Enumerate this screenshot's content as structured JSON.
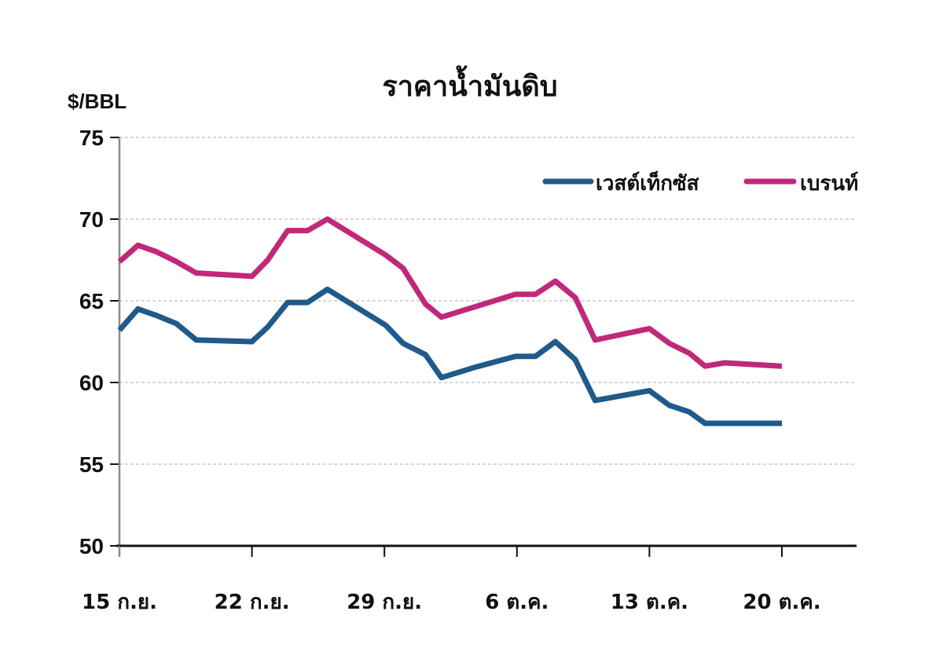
{
  "chart_data": {
    "type": "line",
    "title": "ราคาน้ำมันดิบ",
    "ylabel": "$/BBL",
    "xlabel": "",
    "ylim": [
      50,
      75
    ],
    "yticks": [
      50,
      55,
      60,
      65,
      70,
      75
    ],
    "x_tick_labels": [
      "15 ก.ย.",
      "22 ก.ย.",
      "29 ก.ย.",
      "6 ต.ค.",
      "13 ต.ค.",
      "20 ต.ค."
    ],
    "grid": "horizontal dashed",
    "legend_position": "top-right",
    "series": [
      {
        "name": "เวสต์เท็กซัส",
        "color": "#1f5a8a",
        "points": [
          [
            0,
            63.2
          ],
          [
            0.14,
            64.5
          ],
          [
            0.28,
            64.1
          ],
          [
            0.43,
            63.6
          ],
          [
            0.58,
            62.6
          ],
          [
            1.0,
            62.5
          ],
          [
            1.12,
            63.4
          ],
          [
            1.27,
            64.9
          ],
          [
            1.42,
            64.9
          ],
          [
            1.57,
            65.7
          ],
          [
            2.01,
            63.5
          ],
          [
            2.14,
            62.4
          ],
          [
            2.31,
            61.7
          ],
          [
            2.43,
            60.3
          ],
          [
            2.67,
            60.9
          ],
          [
            2.99,
            61.6
          ],
          [
            3.14,
            61.6
          ],
          [
            3.29,
            62.5
          ],
          [
            3.44,
            61.4
          ],
          [
            3.59,
            58.9
          ],
          [
            4.0,
            59.5
          ],
          [
            4.15,
            58.6
          ],
          [
            4.3,
            58.2
          ],
          [
            4.42,
            57.5
          ],
          [
            5.0,
            57.5
          ]
        ]
      },
      {
        "name": "เบรนท์",
        "color": "#c0297a",
        "points": [
          [
            0,
            67.4
          ],
          [
            0.14,
            68.4
          ],
          [
            0.28,
            68.0
          ],
          [
            0.43,
            67.4
          ],
          [
            0.58,
            66.7
          ],
          [
            1.0,
            66.5
          ],
          [
            1.12,
            67.5
          ],
          [
            1.27,
            69.3
          ],
          [
            1.42,
            69.3
          ],
          [
            1.57,
            70.0
          ],
          [
            2.01,
            67.8
          ],
          [
            2.14,
            67.0
          ],
          [
            2.31,
            64.8
          ],
          [
            2.43,
            64.0
          ],
          [
            2.67,
            64.6
          ],
          [
            2.99,
            65.4
          ],
          [
            3.14,
            65.4
          ],
          [
            3.29,
            66.2
          ],
          [
            3.44,
            65.2
          ],
          [
            3.59,
            62.6
          ],
          [
            4.0,
            63.3
          ],
          [
            4.15,
            62.4
          ],
          [
            4.3,
            61.8
          ],
          [
            4.42,
            61.0
          ],
          [
            4.57,
            61.2
          ],
          [
            5.0,
            61.0
          ]
        ]
      }
    ]
  },
  "header": {
    "title": "ราคาน้ำมันดิบ",
    "unit": "$/BBL"
  },
  "legend": {
    "wti_label": "เวสต์เท็กซัส",
    "brent_label": "เบรนท์"
  }
}
